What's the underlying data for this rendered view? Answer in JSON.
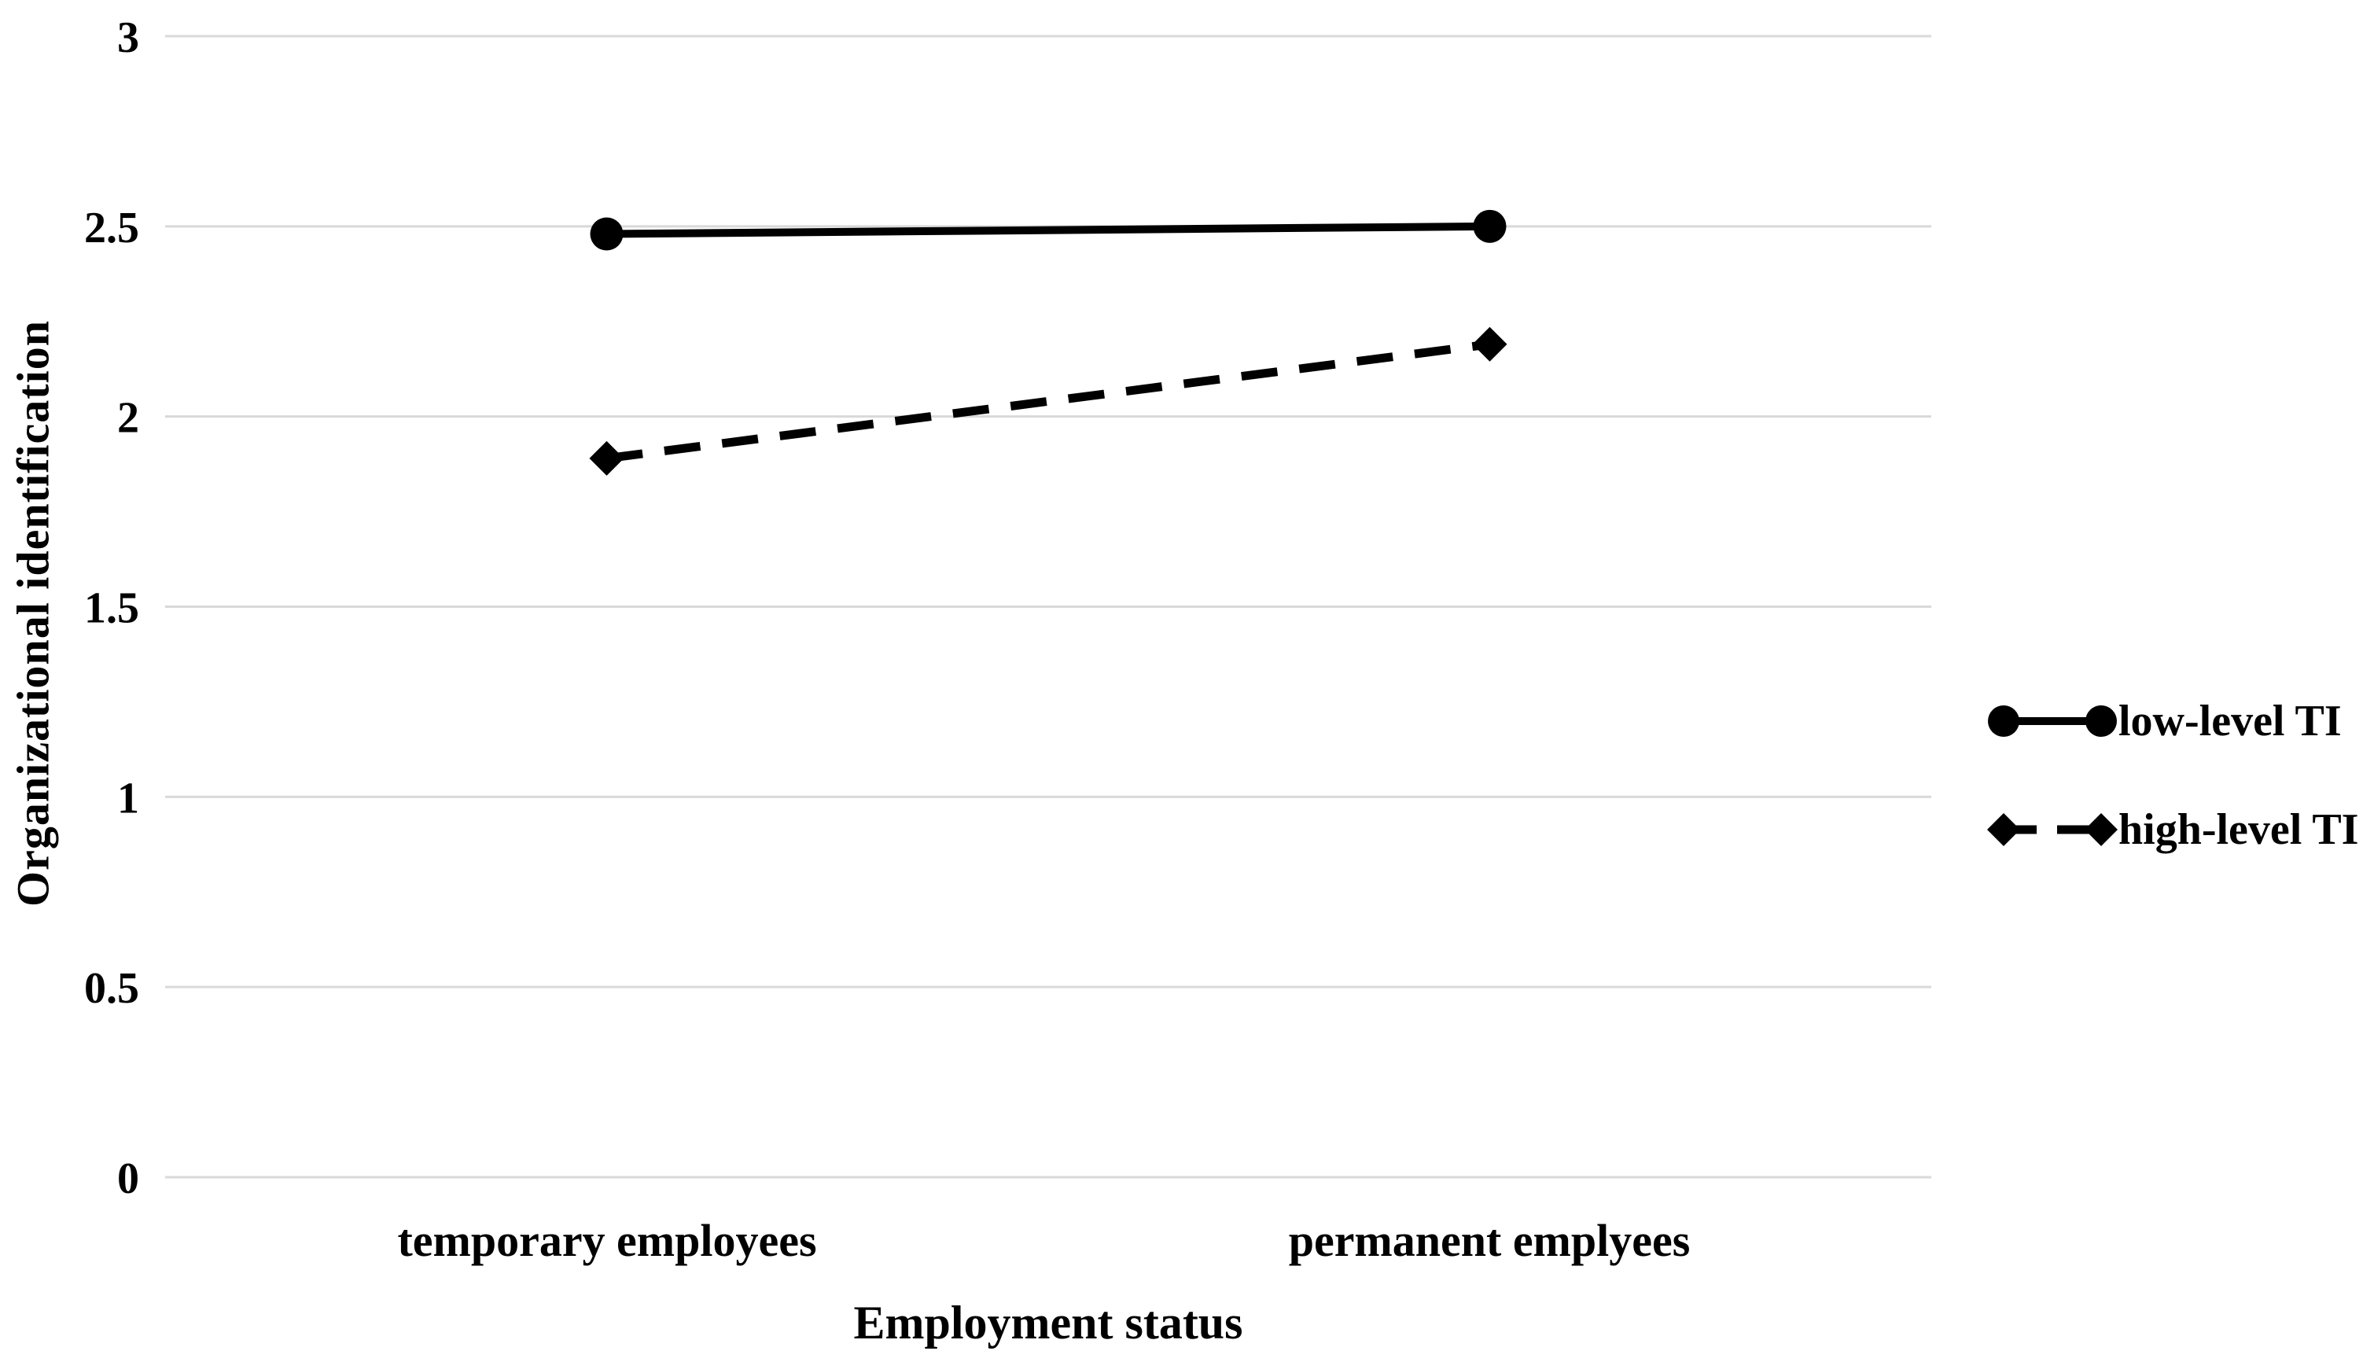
{
  "figure": {
    "background": "#ffffff"
  },
  "chart_data": {
    "type": "line",
    "title": "",
    "xlabel": "Employment status",
    "ylabel": "Organizational identification",
    "categories": [
      "temporary employees",
      "permanent emplyees"
    ],
    "series": [
      {
        "name": "low-level TI",
        "values": [
          2.48,
          2.5
        ],
        "line_style": "solid",
        "marker": "circle",
        "color": "#000000"
      },
      {
        "name": "high-level TI",
        "values": [
          1.89,
          2.19
        ],
        "line_style": "dashed",
        "marker": "diamond",
        "color": "#000000"
      }
    ],
    "ylim": [
      0,
      3
    ],
    "yticks": [
      3,
      2.5,
      2,
      1.5,
      1,
      0.5,
      0
    ],
    "ytick_labels": [
      "3",
      "2.5",
      "2",
      "1.5",
      "1",
      "0.5",
      "0"
    ],
    "grid": "horizontal",
    "gridline_color": "#d9d9d9",
    "text_color": "#000000",
    "legend_position": "center-right"
  }
}
